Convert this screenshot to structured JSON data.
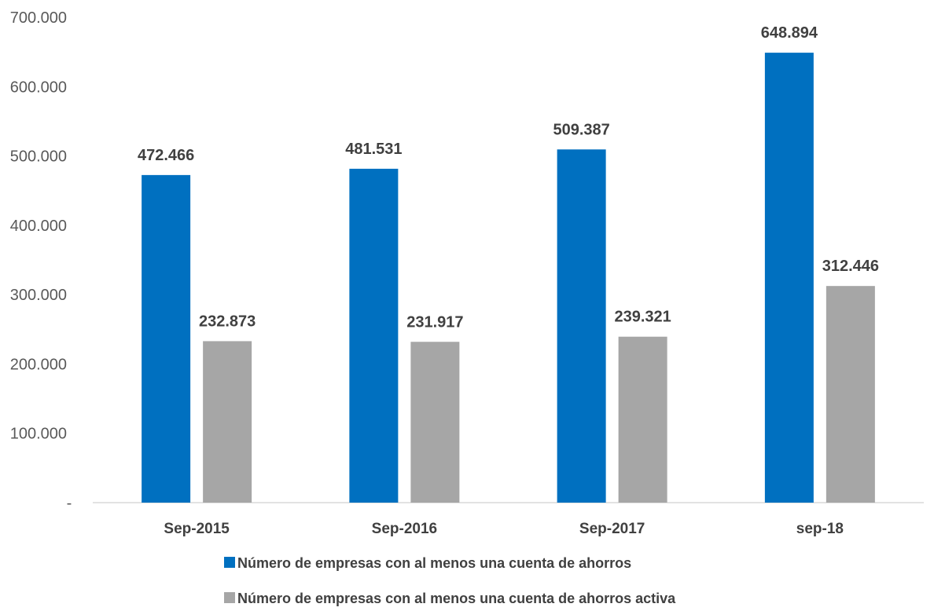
{
  "chart_data": {
    "type": "bar",
    "categories": [
      "Sep-2015",
      "Sep-2016",
      "Sep-2017",
      "sep-18"
    ],
    "series": [
      {
        "name": "Número de empresas con al menos una cuenta de ahorros",
        "values": [
          472466,
          481531,
          509387,
          648894
        ],
        "labels": [
          "472.466",
          "481.531",
          "509.387",
          "648.894"
        ],
        "color": "#0070C0"
      },
      {
        "name": "Número de empresas con al menos una cuenta de ahorros activa",
        "values": [
          232873,
          231917,
          239321,
          312446
        ],
        "labels": [
          "232.873",
          "231.917",
          "239.321",
          "312.446"
        ],
        "color": "#A6A6A6"
      }
    ],
    "title": "",
    "xlabel": "",
    "ylabel": "",
    "ylim": [
      0,
      700000
    ],
    "yticks": [
      {
        "value": 0,
        "label": "-"
      },
      {
        "value": 100000,
        "label": "100.000"
      },
      {
        "value": 200000,
        "label": "200.000"
      },
      {
        "value": 300000,
        "label": "300.000"
      },
      {
        "value": 400000,
        "label": "400.000"
      },
      {
        "value": 500000,
        "label": "500.000"
      },
      {
        "value": 600000,
        "label": "600.000"
      },
      {
        "value": 700000,
        "label": "700.000"
      }
    ],
    "grid": false,
    "legend_position": "bottom"
  }
}
